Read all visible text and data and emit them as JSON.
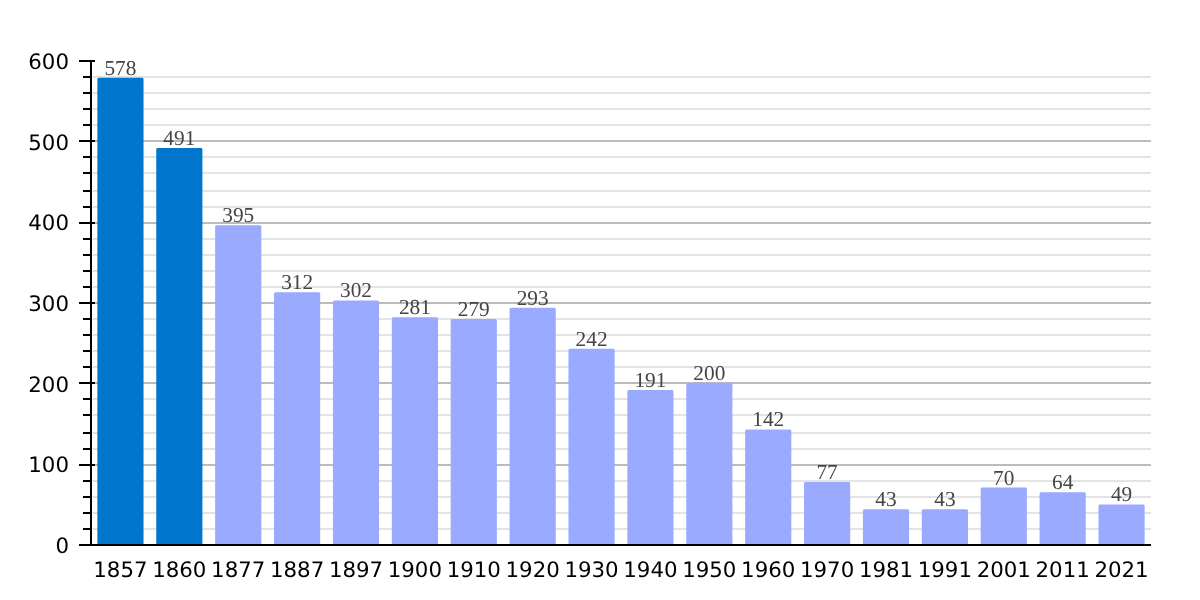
{
  "chart_data": {
    "type": "bar",
    "categories": [
      "1857",
      "1860",
      "1877",
      "1887",
      "1897",
      "1900",
      "1910",
      "1920",
      "1930",
      "1940",
      "1950",
      "1960",
      "1970",
      "1981",
      "1991",
      "2001",
      "2011",
      "2021"
    ],
    "values": [
      578,
      491,
      395,
      312,
      302,
      281,
      279,
      293,
      242,
      191,
      200,
      142,
      77,
      43,
      43,
      70,
      64,
      49
    ],
    "colors": [
      "#0077cc",
      "#0077cc",
      "#99aaff",
      "#99aaff",
      "#99aaff",
      "#99aaff",
      "#99aaff",
      "#99aaff",
      "#99aaff",
      "#99aaff",
      "#99aaff",
      "#99aaff",
      "#99aaff",
      "#99aaff",
      "#99aaff",
      "#99aaff",
      "#99aaff",
      "#99aaff"
    ],
    "ylim": [
      0,
      600
    ],
    "yticks": [
      0,
      100,
      200,
      300,
      400,
      500,
      600
    ],
    "grid": "y",
    "data_labels": true
  }
}
